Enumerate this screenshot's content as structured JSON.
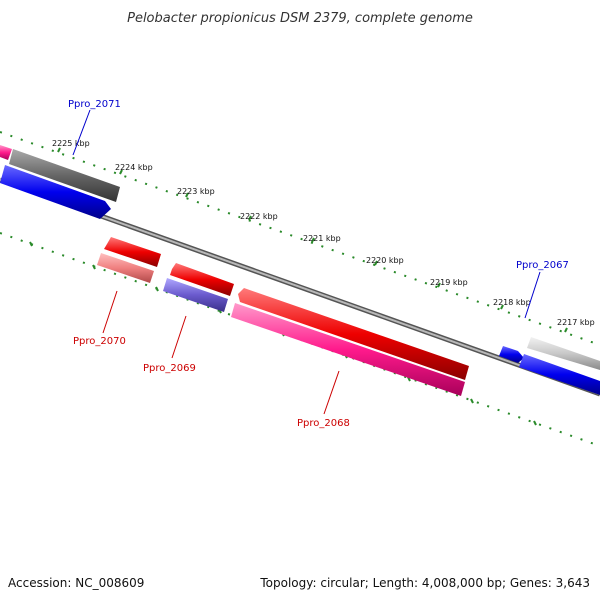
{
  "title": "Pelobacter propionicus DSM 2379, complete genome",
  "footer": {
    "accession": "Accession: NC_008609",
    "summary": "Topology: circular; Length: 4,008,000 bp; Genes: 3,643"
  },
  "ticks": [
    "2225 kbp",
    "2224 kbp",
    "2223 kbp",
    "2222 kbp",
    "2221 kbp",
    "2220 kbp",
    "2219 kbp",
    "2218 kbp",
    "2217 kbp"
  ],
  "gene_labels": {
    "ppro_2071": "Ppro_2071",
    "ppro_2070": "Ppro_2070",
    "ppro_2069": "Ppro_2069",
    "ppro_2068": "Ppro_2068",
    "ppro_2067": "Ppro_2067"
  },
  "colors": {
    "blue_label": "#0000cc",
    "red_label": "#cc0000",
    "tick_green": "#2a8a2a",
    "backbone": "#888888"
  }
}
